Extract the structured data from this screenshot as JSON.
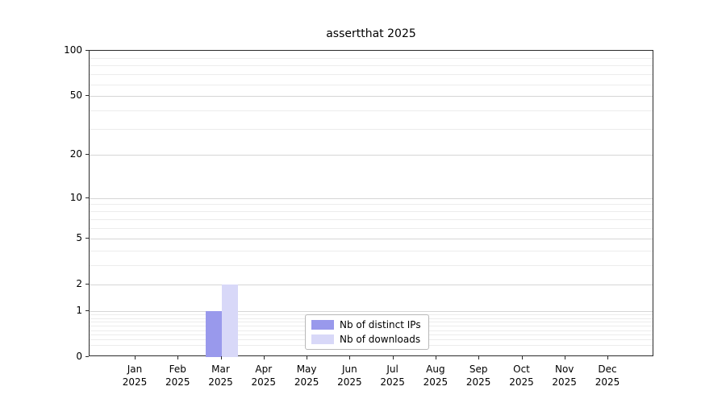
{
  "chart_data": {
    "type": "bar",
    "title": "assertthat 2025",
    "categories": [
      "Jan",
      "Feb",
      "Mar",
      "Apr",
      "May",
      "Jun",
      "Jul",
      "Aug",
      "Sep",
      "Oct",
      "Nov",
      "Dec"
    ],
    "category_year": "2025",
    "series": [
      {
        "name": "Nb of distinct IPs",
        "color": "#9999ec",
        "values": [
          0,
          0,
          1,
          0,
          0,
          0,
          0,
          0,
          0,
          0,
          0,
          0
        ]
      },
      {
        "name": "Nb of downloads",
        "color": "#d8d8f8",
        "values": [
          0,
          0,
          2,
          0,
          0,
          0,
          0,
          0,
          0,
          0,
          0,
          0
        ]
      }
    ],
    "y_scale": "log1p",
    "y_ticks": [
      0,
      1,
      2,
      5,
      10,
      20,
      50,
      100
    ],
    "y_minor_ticks": [
      0.2,
      0.3,
      0.4,
      0.5,
      0.6,
      0.7,
      0.8,
      0.9,
      3,
      4,
      6,
      7,
      8,
      9,
      30,
      40,
      60,
      70,
      80,
      90
    ],
    "ylim": [
      0,
      100
    ],
    "grid": "horizontal",
    "legend_position": "lower-center-inside"
  }
}
